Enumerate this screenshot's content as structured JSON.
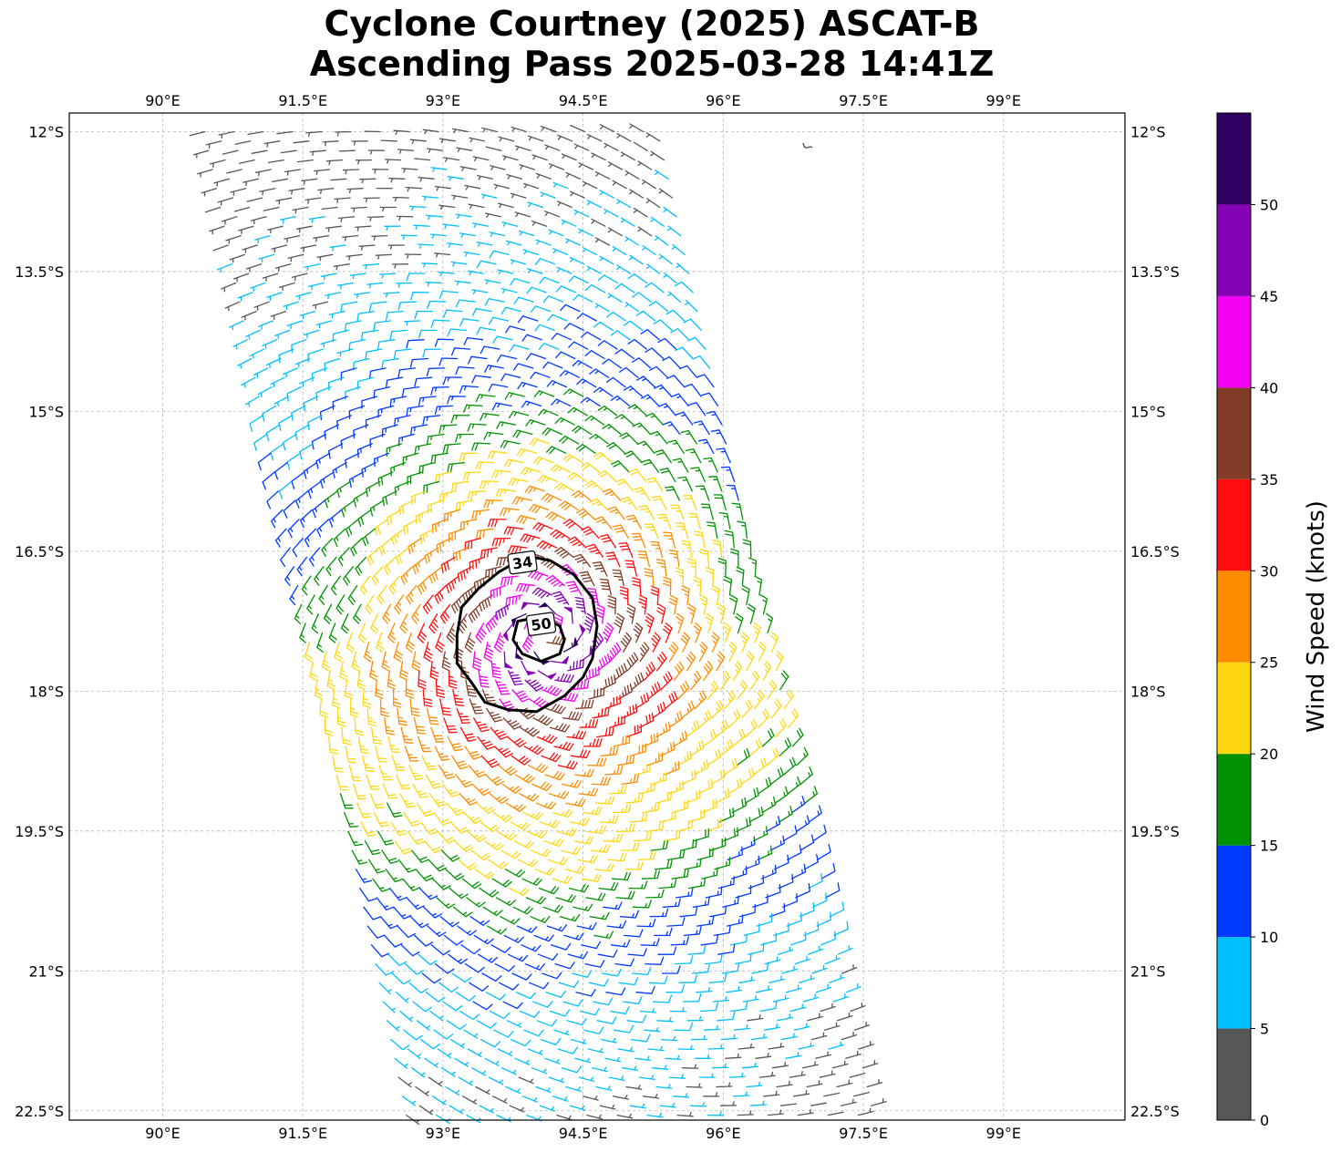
{
  "title": {
    "line1": "Cyclone Courtney (2025) ASCAT-B",
    "line2": "Ascending Pass 2025-03-28 14:41Z"
  },
  "map": {
    "lon_range": [
      89.0,
      100.3
    ],
    "lat_range": [
      -22.6,
      -11.8
    ],
    "lon_ticks": [
      90,
      91.5,
      93,
      94.5,
      96,
      97.5,
      99
    ],
    "lon_tick_labels": [
      "90°E",
      "91.5°E",
      "93°E",
      "94.5°E",
      "96°E",
      "97.5°E",
      "99°E"
    ],
    "lat_ticks": [
      -12,
      -13.5,
      -15,
      -16.5,
      -18,
      -19.5,
      -21,
      -22.5
    ],
    "lat_tick_labels": [
      "12°S",
      "13.5°S",
      "15°S",
      "16.5°S",
      "18°S",
      "19.5°S",
      "21°S",
      "22.5°S"
    ],
    "gridlines": true,
    "cyclone_center": [
      94.1,
      -17.4
    ],
    "contours": [
      {
        "label": "34",
        "label_position": [
          93.85,
          -16.62
        ],
        "points": [
          [
            93.6,
            -16.72
          ],
          [
            93.9,
            -16.55
          ],
          [
            94.15,
            -16.6
          ],
          [
            94.4,
            -16.75
          ],
          [
            94.6,
            -17.0
          ],
          [
            94.65,
            -17.3
          ],
          [
            94.6,
            -17.65
          ],
          [
            94.5,
            -17.85
          ],
          [
            94.3,
            -18.05
          ],
          [
            94.0,
            -18.22
          ],
          [
            93.7,
            -18.2
          ],
          [
            93.45,
            -18.12
          ],
          [
            93.3,
            -17.9
          ],
          [
            93.15,
            -17.7
          ],
          [
            93.15,
            -17.4
          ],
          [
            93.2,
            -17.1
          ],
          [
            93.38,
            -16.9
          ]
        ]
      },
      {
        "label": "50",
        "label_position": [
          94.05,
          -17.28
        ],
        "points": [
          [
            93.8,
            -17.25
          ],
          [
            94.05,
            -17.2
          ],
          [
            94.25,
            -17.3
          ],
          [
            94.3,
            -17.45
          ],
          [
            94.25,
            -17.6
          ],
          [
            94.05,
            -17.68
          ],
          [
            93.85,
            -17.6
          ],
          [
            93.75,
            -17.45
          ]
        ]
      }
    ]
  },
  "colorbar": {
    "label": "Wind Speed (knots)",
    "bins": [
      0,
      5,
      10,
      15,
      20,
      25,
      30,
      35,
      40,
      45,
      50,
      55
    ],
    "colors": [
      "#575757",
      "#00bfff",
      "#0039ff",
      "#009200",
      "#ffd711",
      "#ff8c00",
      "#ff0d0d",
      "#813c27",
      "#f100f1",
      "#8400b3",
      "#2e0060"
    ],
    "tick_values": [
      0,
      5,
      10,
      15,
      20,
      25,
      30,
      35,
      40,
      45,
      50
    ],
    "tick_labels": [
      "0",
      "5",
      "10",
      "15",
      "20",
      "25",
      "30",
      "35",
      "40",
      "45",
      "50"
    ]
  }
}
